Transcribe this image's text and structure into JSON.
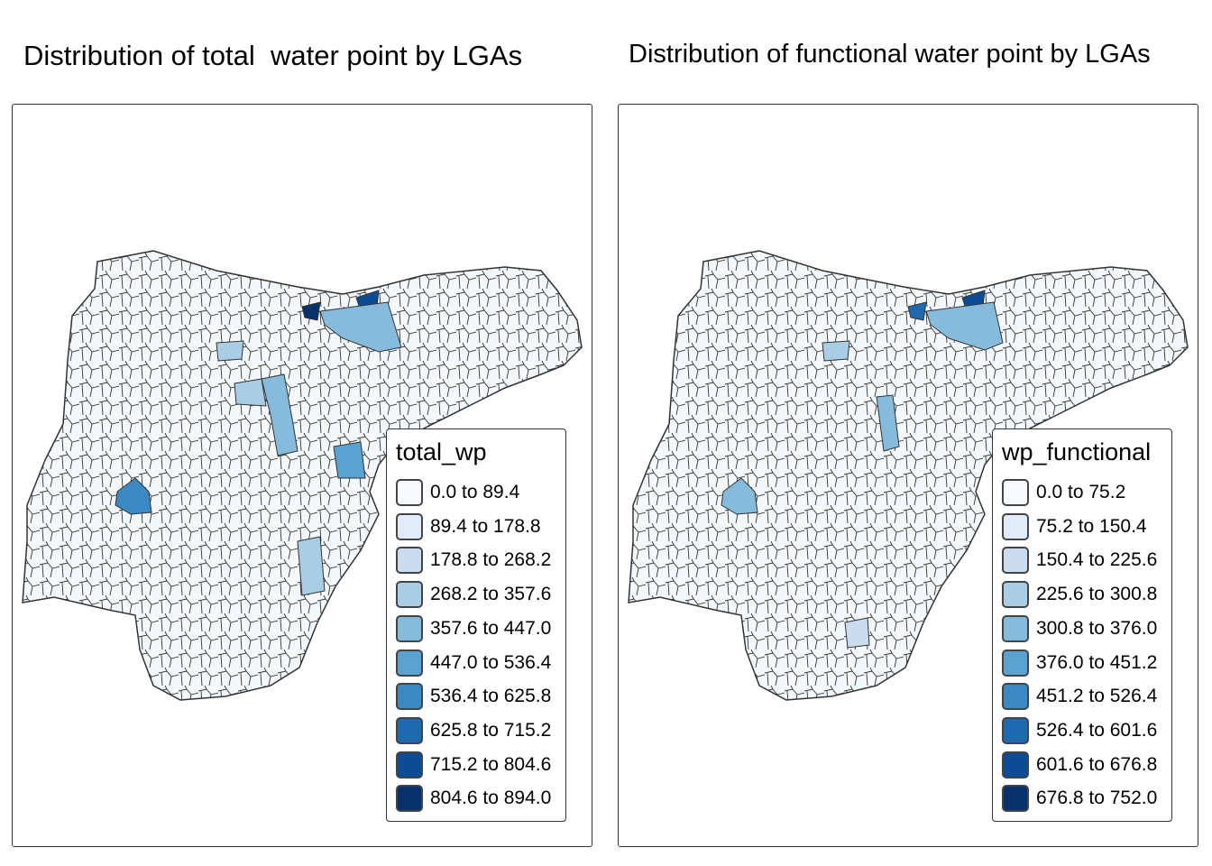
{
  "maps": [
    {
      "title": "Distribution of total  water point by LGAs",
      "legend": {
        "title": "total_wp",
        "items": [
          "0.0 to 89.4",
          "89.4 to 178.8",
          "178.8 to 268.2",
          "268.2 to 357.6",
          "357.6 to 447.0",
          "447.0 to 536.4",
          "536.4 to 625.8",
          "625.8 to 715.2",
          "715.2 to 804.6",
          "804.6 to 894.0"
        ]
      }
    },
    {
      "title": "Distribution of functional water point by LGAs",
      "legend": {
        "title": "wp_functional",
        "items": [
          "0.0 to 75.2",
          "75.2 to 150.4",
          "150.4 to 225.6",
          "225.6 to 300.8",
          "300.8 to 376.0",
          "376.0 to 451.2",
          "451.2 to 526.4",
          "526.4 to 601.6",
          "601.6 to 676.8",
          "676.8 to 752.0"
        ]
      }
    }
  ],
  "palette": [
    "#f7fbff",
    "#e0ecf8",
    "#cbdcee",
    "#a9cde4",
    "#86bbdb",
    "#5ba2d0",
    "#3c88c2",
    "#1f6aae",
    "#0c4c94",
    "#08306b"
  ]
}
